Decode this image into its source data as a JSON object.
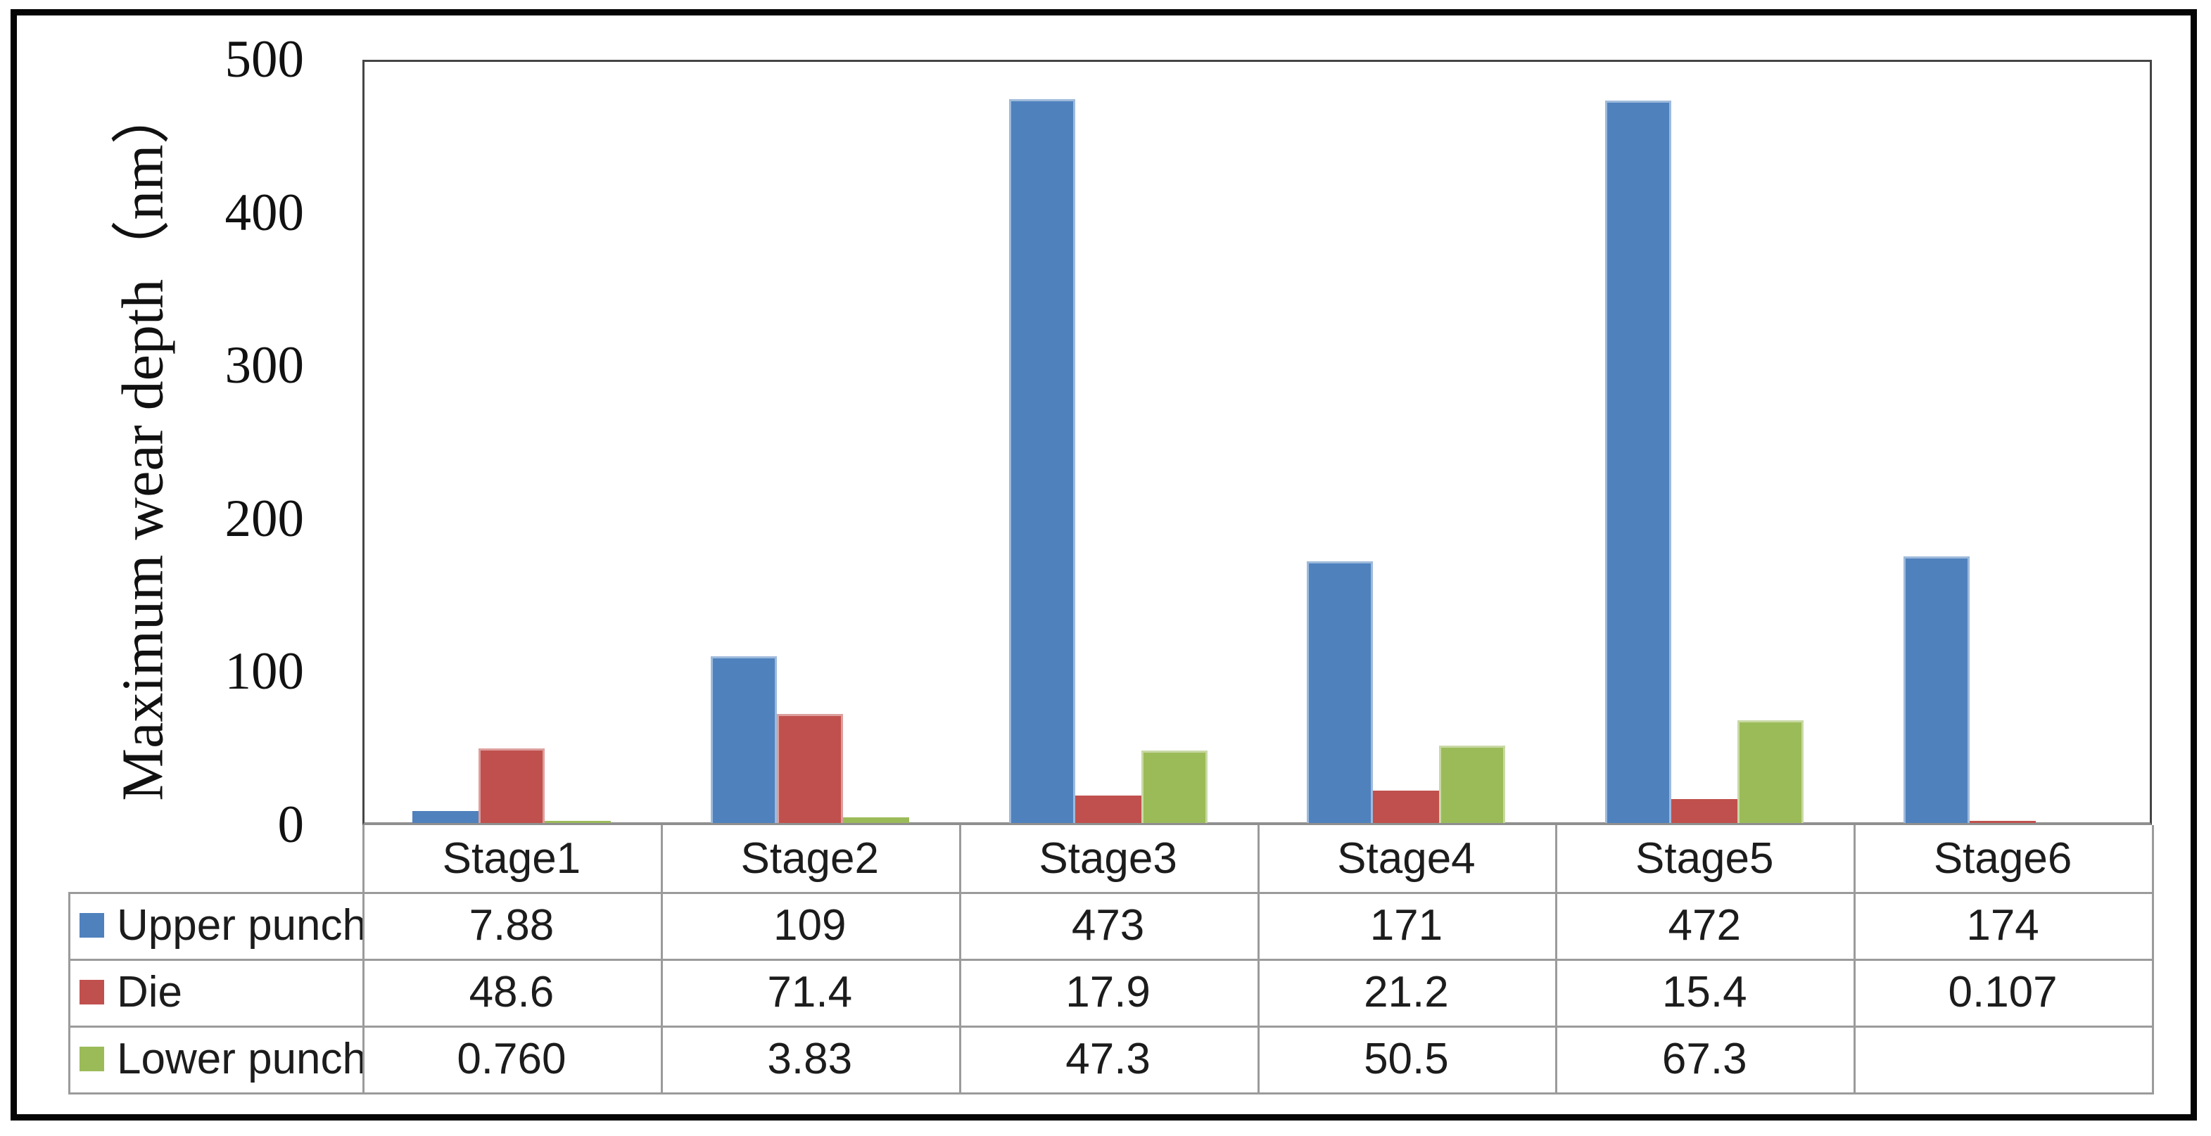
{
  "chart_data": {
    "type": "bar",
    "title": "",
    "ylabel": "Maximum wear depth（nm）",
    "xlabel": "",
    "ylim": [
      0,
      500
    ],
    "yticks": [
      0,
      100,
      200,
      300,
      400,
      500
    ],
    "ytick_labels": [
      "0",
      "100",
      "200",
      "300",
      "400",
      "500"
    ],
    "grid": false,
    "legend_position": "table-left",
    "categories": [
      "Stage1",
      "Stage2",
      "Stage3",
      "Stage4",
      "Stage5",
      "Stage6"
    ],
    "series": [
      {
        "name": "Upper punch",
        "color": "#4F81BD",
        "values": [
          7.88,
          109,
          473,
          171,
          472,
          174
        ],
        "value_labels": [
          "7.88",
          "109",
          "473",
          "171",
          "472",
          "174"
        ]
      },
      {
        "name": "Die",
        "color": "#C0504D",
        "values": [
          48.6,
          71.4,
          17.9,
          21.2,
          15.4,
          0.107
        ],
        "value_labels": [
          "48.6",
          "71.4",
          "17.9",
          "21.2",
          "15.4",
          "0.107"
        ]
      },
      {
        "name": "Lower punch",
        "color": "#9BBB59",
        "values": [
          0.76,
          3.83,
          47.3,
          50.5,
          67.3,
          null
        ],
        "value_labels": [
          "0.760",
          "3.83",
          "47.3",
          "50.5",
          "67.3",
          ""
        ]
      }
    ]
  }
}
